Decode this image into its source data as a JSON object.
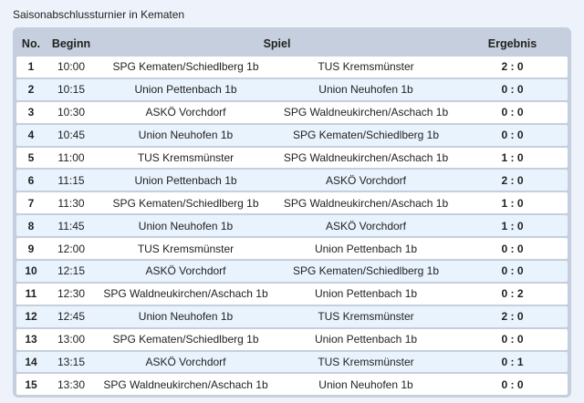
{
  "page": {
    "title": "Saisonabschlussturnier in Kematen"
  },
  "table": {
    "headers": {
      "no": "No.",
      "beginn": "Beginn",
      "spiel": "Spiel",
      "ergebnis": "Ergebnis"
    },
    "rows": [
      {
        "no": "1",
        "time": "10:00",
        "home": "SPG Kematen/Schiedlberg 1b",
        "away": "TUS Kremsmünster",
        "result": "2 : 0"
      },
      {
        "no": "2",
        "time": "10:15",
        "home": "Union Pettenbach 1b",
        "away": "Union Neuhofen 1b",
        "result": "0 : 0"
      },
      {
        "no": "3",
        "time": "10:30",
        "home": "ASKÖ Vorchdorf",
        "away": "SPG Waldneukirchen/Aschach 1b",
        "result": "0 : 0"
      },
      {
        "no": "4",
        "time": "10:45",
        "home": "Union Neuhofen 1b",
        "away": "SPG Kematen/Schiedlberg 1b",
        "result": "0 : 0"
      },
      {
        "no": "5",
        "time": "11:00",
        "home": "TUS Kremsmünster",
        "away": "SPG Waldneukirchen/Aschach 1b",
        "result": "1 : 0"
      },
      {
        "no": "6",
        "time": "11:15",
        "home": "Union Pettenbach 1b",
        "away": "ASKÖ Vorchdorf",
        "result": "2 : 0"
      },
      {
        "no": "7",
        "time": "11:30",
        "home": "SPG Kematen/Schiedlberg 1b",
        "away": "SPG Waldneukirchen/Aschach 1b",
        "result": "1 : 0"
      },
      {
        "no": "8",
        "time": "11:45",
        "home": "Union Neuhofen 1b",
        "away": "ASKÖ Vorchdorf",
        "result": "1 : 0"
      },
      {
        "no": "9",
        "time": "12:00",
        "home": "TUS Kremsmünster",
        "away": "Union Pettenbach 1b",
        "result": "0 : 0"
      },
      {
        "no": "10",
        "time": "12:15",
        "home": "ASKÖ Vorchdorf",
        "away": "SPG Kematen/Schiedlberg 1b",
        "result": "0 : 0"
      },
      {
        "no": "11",
        "time": "12:30",
        "home": "SPG Waldneukirchen/Aschach 1b",
        "away": "Union Pettenbach 1b",
        "result": "0 : 2"
      },
      {
        "no": "12",
        "time": "12:45",
        "home": "Union Neuhofen 1b",
        "away": "TUS Kremsmünster",
        "result": "2 : 0"
      },
      {
        "no": "13",
        "time": "13:00",
        "home": "SPG Kematen/Schiedlberg 1b",
        "away": "Union Pettenbach 1b",
        "result": "0 : 0"
      },
      {
        "no": "14",
        "time": "13:15",
        "home": "ASKÖ Vorchdorf",
        "away": "TUS Kremsmünster",
        "result": "0 : 1"
      },
      {
        "no": "15",
        "time": "13:30",
        "home": "SPG Waldneukirchen/Aschach 1b",
        "away": "Union Neuhofen 1b",
        "result": "0 : 0"
      }
    ]
  }
}
